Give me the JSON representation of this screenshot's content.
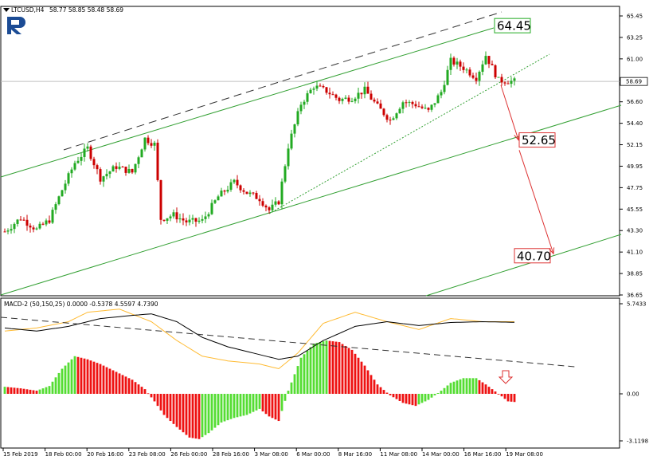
{
  "chart_data": [
    {
      "type": "candlestick",
      "symbol_header": "LTCUSD,H4",
      "ohlc_header": "58.77 58.85 58.48 58.69",
      "current_price_label": "58.69",
      "y_ticks": [
        "65.45",
        "63.25",
        "61.00",
        "58.80",
        "56.60",
        "54.40",
        "52.15",
        "49.95",
        "47.75",
        "45.55",
        "43.30",
        "41.10",
        "38.85",
        "36.65"
      ],
      "ylim": [
        36.65,
        66.5
      ],
      "x_ticks": [
        "15 Feb 2019",
        "18 Feb 00:00",
        "20 Feb 16:00",
        "23 Feb 08:00",
        "26 Feb 00:00",
        "28 Feb 16:00",
        "3 Mar 08:00",
        "6 Mar 00:00",
        "8 Mar 16:00",
        "11 Mar 08:00",
        "14 Mar 00:00",
        "16 Mar 16:00",
        "19 Mar 08:00"
      ],
      "levels": [
        "64.45",
        "52.65",
        "40.70"
      ],
      "bull_color": "#22aa22",
      "bear_color": "#cc0000",
      "channel_color": "#33a033",
      "arrow_color": "#dd3333",
      "price_anchors": [
        [
          0,
          43.2
        ],
        [
          5,
          44.6
        ],
        [
          10,
          43.4
        ],
        [
          14,
          44.4
        ],
        [
          18,
          47.5
        ],
        [
          22,
          50.3
        ],
        [
          26,
          51.8
        ],
        [
          30,
          48.7
        ],
        [
          35,
          49.9
        ],
        [
          40,
          49.3
        ],
        [
          44,
          52.8
        ],
        [
          47,
          52.2
        ],
        [
          49,
          44.5
        ],
        [
          53,
          44.9
        ],
        [
          57,
          44.2
        ],
        [
          62,
          44.3
        ],
        [
          67,
          46.8
        ],
        [
          72,
          48.3
        ],
        [
          76,
          47.2
        ],
        [
          80,
          46.6
        ],
        [
          83,
          45.4
        ],
        [
          86,
          46.3
        ],
        [
          89,
          52.0
        ],
        [
          93,
          56.4
        ],
        [
          97,
          58.2
        ],
        [
          101,
          57.7
        ],
        [
          105,
          56.8
        ],
        [
          109,
          57.0
        ],
        [
          113,
          57.8
        ],
        [
          117,
          56.1
        ],
        [
          121,
          54.7
        ],
        [
          125,
          56.6
        ],
        [
          129,
          56.3
        ],
        [
          133,
          55.6
        ],
        [
          137,
          57.6
        ],
        [
          140,
          60.8
        ],
        [
          144,
          60.1
        ],
        [
          148,
          59.1
        ],
        [
          151,
          61.4
        ],
        [
          155,
          58.8
        ],
        [
          160,
          58.69
        ]
      ]
    },
    {
      "type": "macd",
      "header": "MACD-2 (50,150,25) 0.0000 -0.5378 4.5597 4.7390",
      "y_ticks": [
        "5.7433",
        "0.00",
        "-3.1198"
      ],
      "ylim": [
        -3.1198,
        5.7433
      ],
      "bull_color": "#55dd33",
      "bear_color": "#ee1111",
      "signal_color": "#ffbb33",
      "histogram_anchors": [
        [
          0,
          0.45
        ],
        [
          5,
          0.35
        ],
        [
          10,
          0.2
        ],
        [
          14,
          0.5
        ],
        [
          18,
          1.6
        ],
        [
          22,
          2.4
        ],
        [
          26,
          2.2
        ],
        [
          30,
          1.9
        ],
        [
          35,
          1.4
        ],
        [
          40,
          0.9
        ],
        [
          44,
          0.3
        ],
        [
          47,
          -0.5
        ],
        [
          50,
          -1.4
        ],
        [
          54,
          -2.2
        ],
        [
          58,
          -2.9
        ],
        [
          61,
          -3.0
        ],
        [
          64,
          -2.6
        ],
        [
          68,
          -1.9
        ],
        [
          72,
          -1.6
        ],
        [
          76,
          -1.4
        ],
        [
          80,
          -1.0
        ],
        [
          83,
          -1.5
        ],
        [
          86,
          -1.8
        ],
        [
          89,
          0.2
        ],
        [
          93,
          2.3
        ],
        [
          97,
          3.2
        ],
        [
          101,
          3.4
        ],
        [
          105,
          3.3
        ],
        [
          109,
          2.8
        ],
        [
          113,
          1.8
        ],
        [
          117,
          0.6
        ],
        [
          121,
          -0.1
        ],
        [
          125,
          -0.6
        ],
        [
          129,
          -0.8
        ],
        [
          133,
          -0.4
        ],
        [
          137,
          0.2
        ],
        [
          140,
          0.7
        ],
        [
          144,
          1.0
        ],
        [
          148,
          1.0
        ],
        [
          151,
          0.6
        ],
        [
          155,
          0.0
        ],
        [
          158,
          -0.5
        ],
        [
          160,
          -0.54
        ]
      ],
      "macd_anchors": [
        [
          0,
          4.2
        ],
        [
          10,
          4.0
        ],
        [
          20,
          4.3
        ],
        [
          30,
          4.8
        ],
        [
          40,
          5.0
        ],
        [
          46,
          5.1
        ],
        [
          54,
          4.6
        ],
        [
          62,
          3.6
        ],
        [
          70,
          3.0
        ],
        [
          78,
          2.6
        ],
        [
          86,
          2.2
        ],
        [
          92,
          2.4
        ],
        [
          100,
          3.4
        ],
        [
          110,
          4.3
        ],
        [
          120,
          4.6
        ],
        [
          130,
          4.35
        ],
        [
          140,
          4.55
        ],
        [
          150,
          4.6
        ],
        [
          160,
          4.56
        ]
      ],
      "signal_anchors": [
        [
          0,
          4.0
        ],
        [
          10,
          4.2
        ],
        [
          20,
          4.6
        ],
        [
          26,
          5.2
        ],
        [
          36,
          5.4
        ],
        [
          46,
          4.6
        ],
        [
          54,
          3.4
        ],
        [
          62,
          2.4
        ],
        [
          70,
          2.1
        ],
        [
          80,
          1.9
        ],
        [
          86,
          1.6
        ],
        [
          92,
          2.6
        ],
        [
          100,
          4.5
        ],
        [
          110,
          5.2
        ],
        [
          120,
          4.6
        ],
        [
          130,
          4.1
        ],
        [
          140,
          4.8
        ],
        [
          150,
          4.6
        ],
        [
          160,
          4.6
        ]
      ]
    }
  ]
}
